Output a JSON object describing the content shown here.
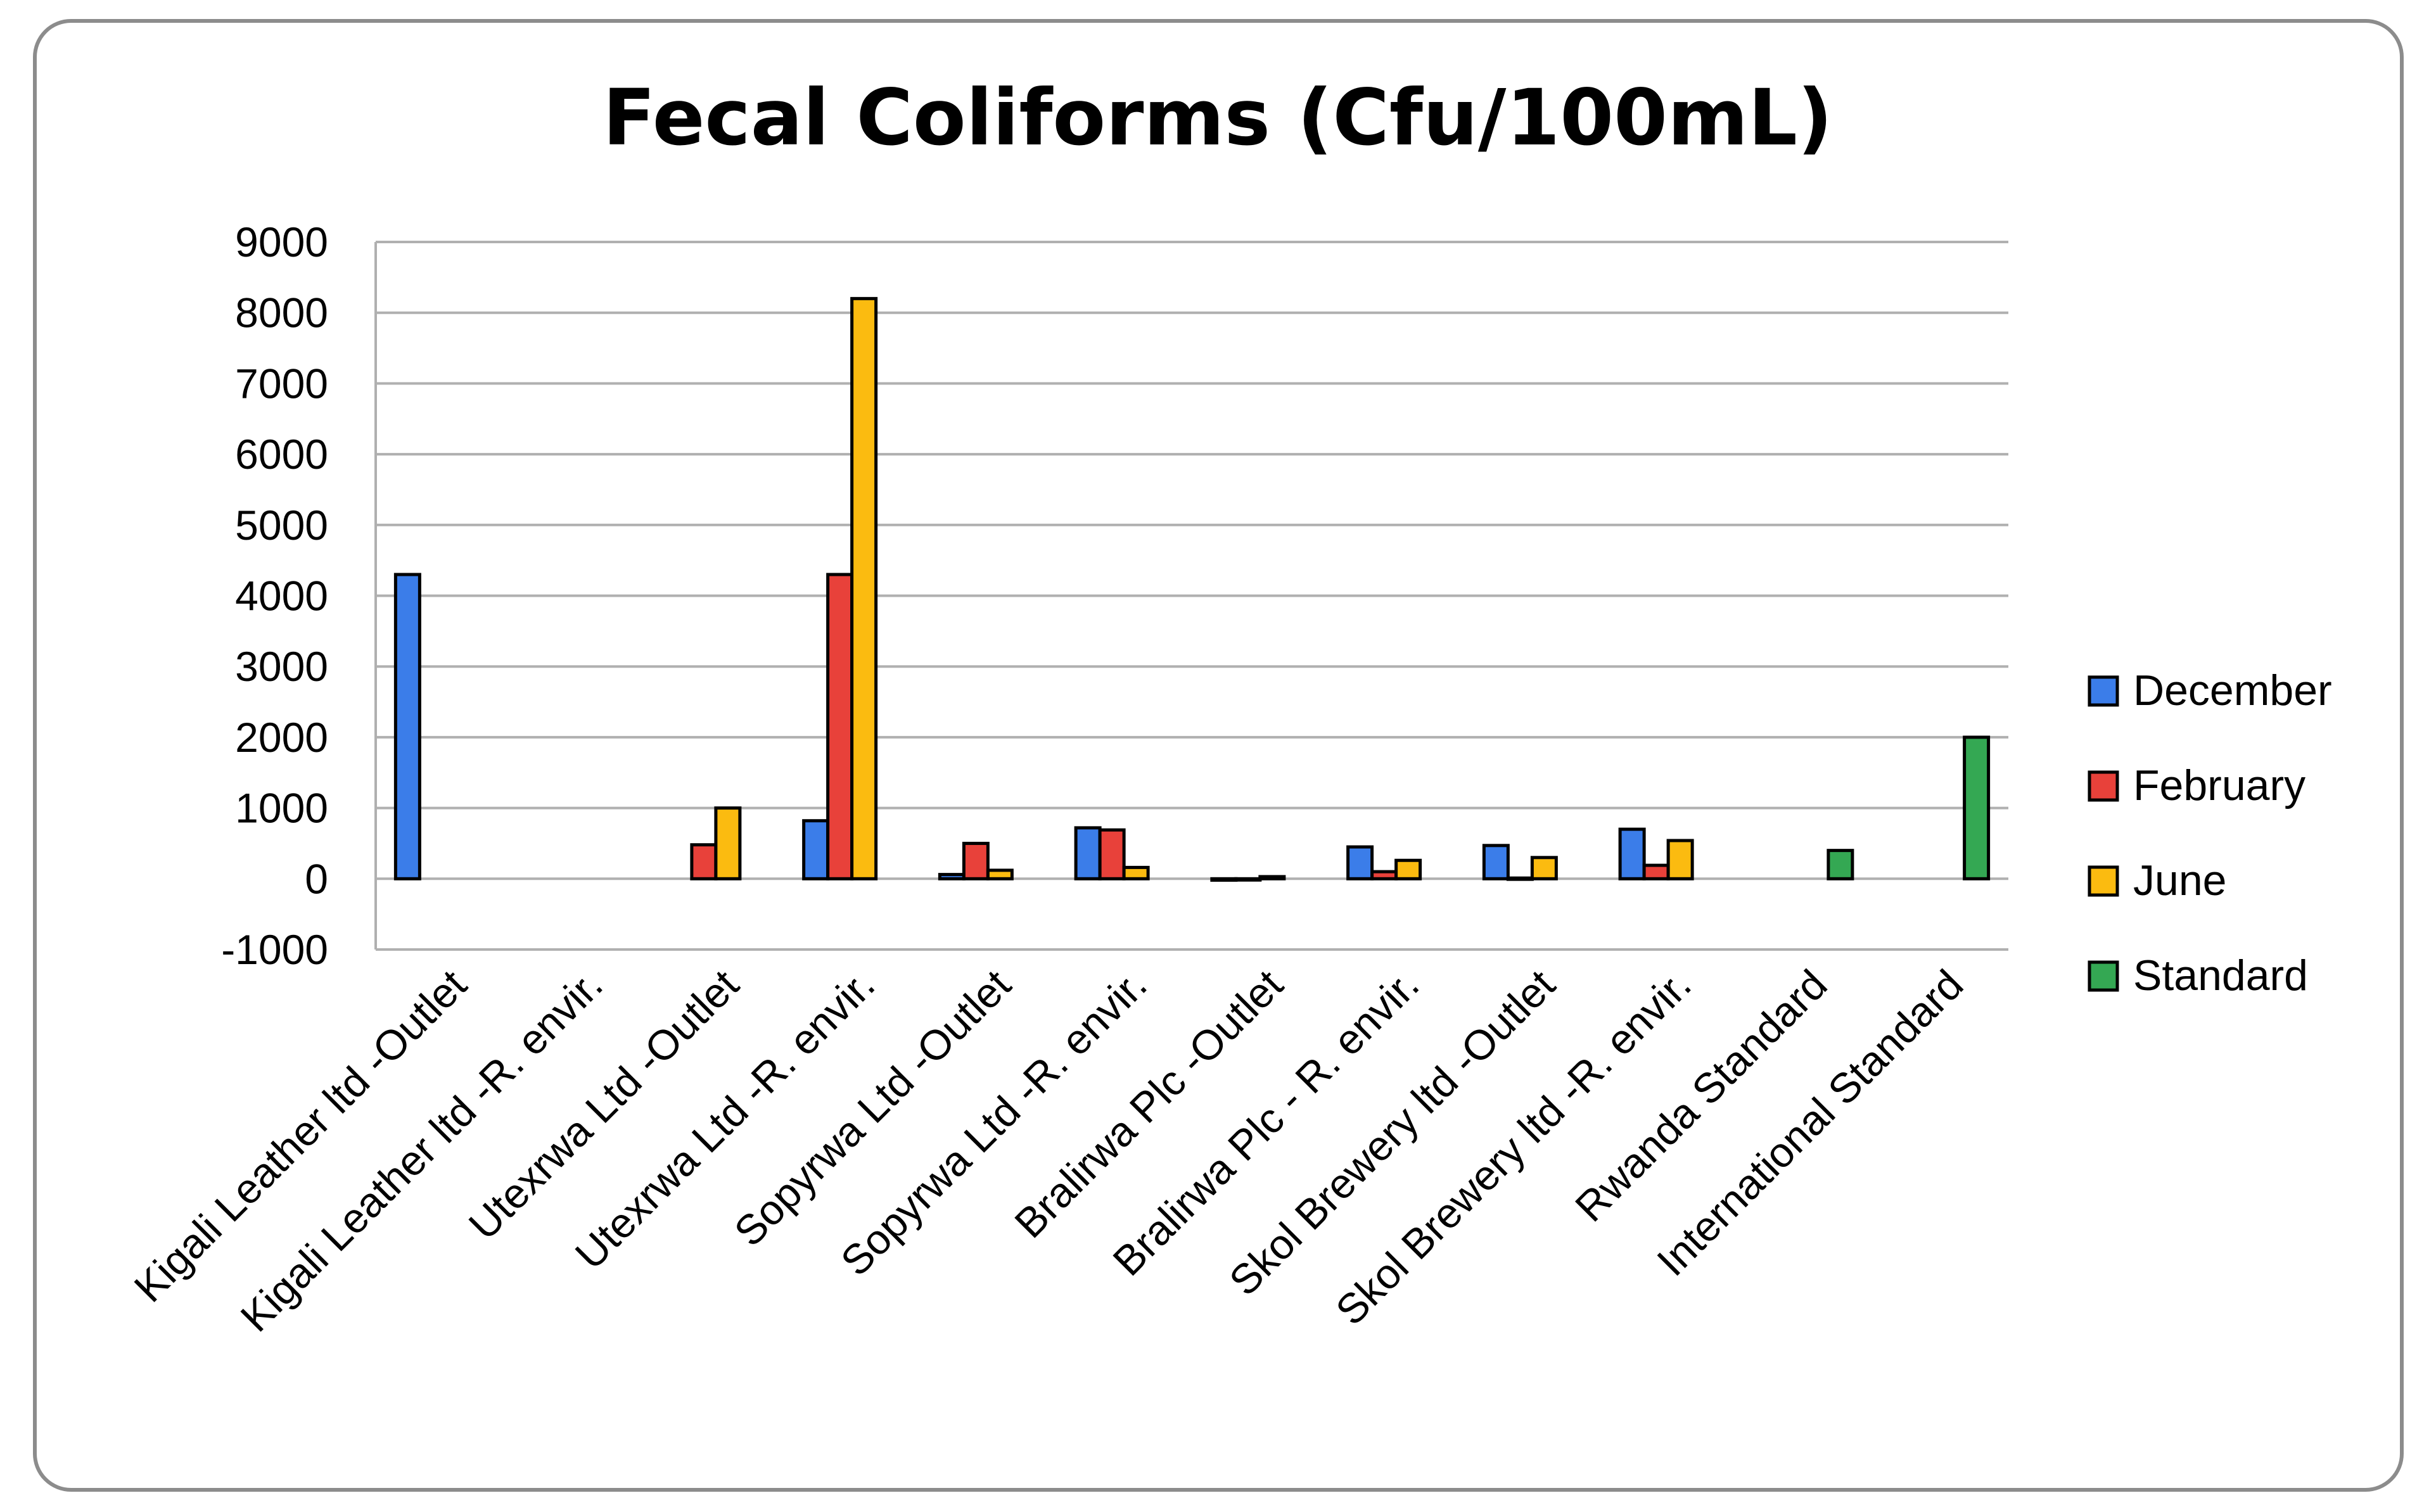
{
  "chart_data": {
    "type": "bar",
    "title": "Fecal Coliforms (Cfu/100mL)",
    "xlabel": "",
    "ylabel": "",
    "ylim": [
      -1000,
      9000
    ],
    "yticks": [
      "9000",
      "8000",
      "7000",
      "6000",
      "5000",
      "4000",
      "3000",
      "2000",
      "1000",
      "0",
      "-1000"
    ],
    "grid": true,
    "legend_position": "right",
    "categories": [
      "Kigali Leather ltd -Outlet",
      "Kigali Leather ltd -R. envir.",
      "Utexrwa Ltd -Outlet",
      "Utexrwa Ltd -R. envir.",
      "Sopyrwa Ltd -Outlet",
      "Sopyrwa Ltd -R. envir.",
      "Bralirwa Plc -Outlet",
      "Bralirwa Plc - R. envir.",
      "Skol Brewery ltd -Outlet",
      "Skol Brewery ltd -R. envir.",
      "Rwanda Standard",
      "International Standard"
    ],
    "series": [
      {
        "name": "December",
        "color": "#3b7de9",
        "values": [
          4300,
          null,
          null,
          820,
          60,
          720,
          -20,
          450,
          470,
          700,
          null,
          null
        ]
      },
      {
        "name": "February",
        "color": "#e8413a",
        "values": [
          null,
          null,
          480,
          4300,
          500,
          690,
          0,
          100,
          10,
          190,
          null,
          null
        ]
      },
      {
        "name": "June",
        "color": "#fbbb10",
        "values": [
          null,
          null,
          1000,
          8200,
          120,
          160,
          30,
          260,
          300,
          540,
          null,
          null
        ]
      },
      {
        "name": "Standard",
        "color": "#34a853",
        "values": [
          null,
          null,
          null,
          null,
          null,
          null,
          null,
          null,
          null,
          null,
          400,
          2000
        ]
      }
    ]
  }
}
